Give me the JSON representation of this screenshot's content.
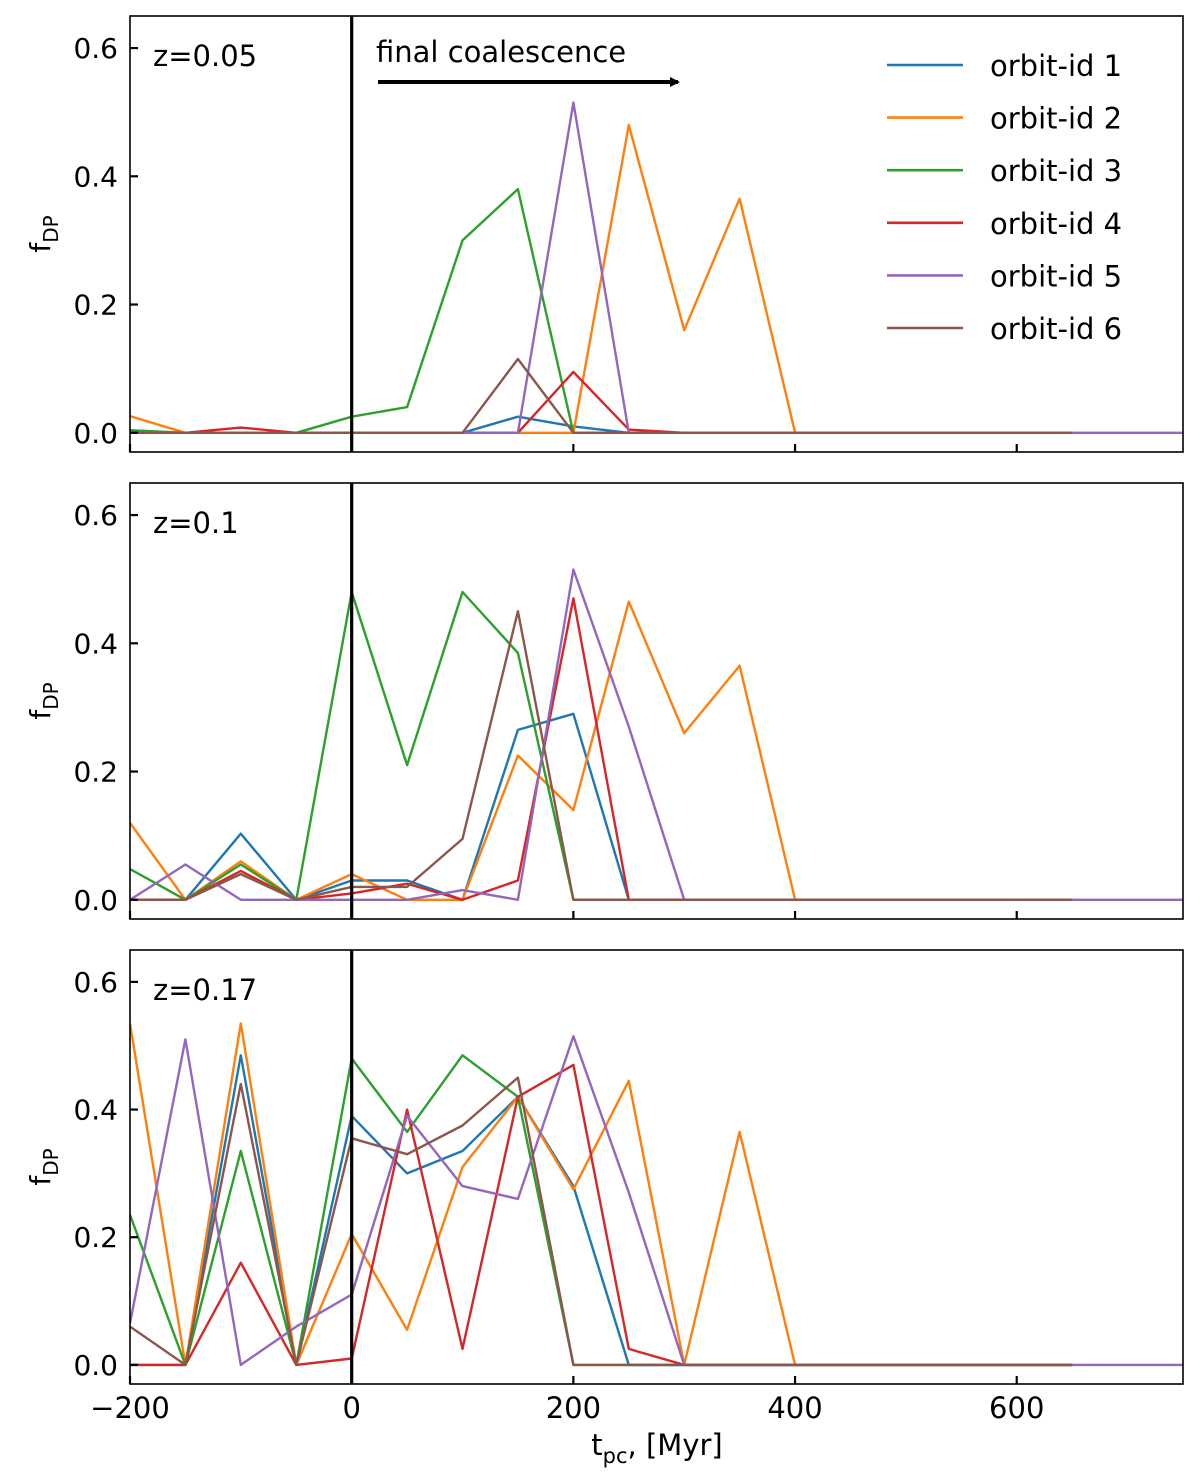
{
  "colors": {
    "orbit-1": "#1f77b4",
    "orbit-2": "#ff7f0e",
    "orbit-3": "#2ca02c",
    "orbit-4": "#d62728",
    "orbit-5": "#9467bd",
    "orbit-6": "#8c564b"
  },
  "legend": [
    "orbit-id 1",
    "orbit-id 2",
    "orbit-id 3",
    "orbit-id 4",
    "orbit-id 5",
    "orbit-id 6"
  ],
  "annotation": "final coalescence",
  "ylabel_main": "f",
  "ylabel_sub": "DP",
  "xlabel_main": "t",
  "xlabel_sub": "pc",
  "xlabel_rest": ", [Myr]",
  "chart_data": [
    {
      "type": "line",
      "title": "z=0.05",
      "xlim": [
        -200,
        750
      ],
      "ylim": [
        -0.03,
        0.65
      ],
      "xticks": [
        -200,
        0,
        200,
        400,
        600
      ],
      "xtick_labels": [
        "−200",
        "0",
        "200",
        "400",
        "600"
      ],
      "yticks": [
        0.0,
        0.2,
        0.4,
        0.6
      ],
      "ytick_labels": [
        "0.0",
        "0.2",
        "0.4",
        "0.6"
      ],
      "vline_x": 0,
      "x": [
        -200,
        -150,
        -100,
        -50,
        0,
        50,
        100,
        150,
        200,
        250,
        300,
        350,
        400,
        450,
        500,
        550,
        600,
        650,
        700,
        750
      ],
      "series": [
        {
          "name": "orbit-id 1",
          "values": [
            0.0,
            0.0,
            0.0,
            0.0,
            0.0,
            0.0,
            0.0,
            0.025,
            0.01,
            0.0,
            0.0,
            0.0,
            0.0,
            0.0,
            0.0,
            0.0,
            0.0,
            0.0,
            null,
            null
          ]
        },
        {
          "name": "orbit-id 2",
          "values": [
            0.026,
            0.0,
            0.0,
            0.0,
            0.0,
            0.0,
            0.0,
            0.0,
            0.0,
            0.48,
            0.16,
            0.365,
            0.0,
            0.0,
            0.0,
            0.0,
            0.0,
            0.0,
            null,
            null
          ]
        },
        {
          "name": "orbit-id 3",
          "values": [
            0.004,
            0.0,
            0.0,
            0.0,
            0.025,
            0.04,
            0.3,
            0.38,
            0.0,
            0.0,
            0.0,
            0.0,
            0.0,
            0.0,
            0.0,
            0.0,
            0.0,
            0.0,
            null,
            null
          ]
        },
        {
          "name": "orbit-id 4",
          "values": [
            0.0,
            0.0,
            0.008,
            0.0,
            0.0,
            0.0,
            0.0,
            0.0,
            0.095,
            0.005,
            0.0,
            0.0,
            0.0,
            0.0,
            0.0,
            0.0,
            0.0,
            0.0,
            null,
            null
          ]
        },
        {
          "name": "orbit-id 5",
          "values": [
            0.0,
            0.0,
            0.0,
            0.0,
            0.0,
            0.0,
            0.0,
            0.0,
            0.515,
            0.0,
            0.0,
            0.0,
            0.0,
            0.0,
            0.0,
            0.0,
            0.0,
            0.0,
            0.0,
            0.0
          ]
        },
        {
          "name": "orbit-id 6",
          "values": [
            0.0,
            0.0,
            0.0,
            0.0,
            0.0,
            0.0,
            0.0,
            0.115,
            0.0,
            0.0,
            0.0,
            0.0,
            0.0,
            0.0,
            0.0,
            0.0,
            0.0,
            0.0,
            null,
            null
          ]
        }
      ]
    },
    {
      "type": "line",
      "title": "z=0.1",
      "xlim": [
        -200,
        750
      ],
      "ylim": [
        -0.03,
        0.65
      ],
      "xticks": [
        -200,
        0,
        200,
        400,
        600
      ],
      "xtick_labels": [
        "−200",
        "0",
        "200",
        "400",
        "600"
      ],
      "yticks": [
        0.0,
        0.2,
        0.4,
        0.6
      ],
      "ytick_labels": [
        "0.0",
        "0.2",
        "0.4",
        "0.6"
      ],
      "vline_x": 0,
      "x": [
        -200,
        -150,
        -100,
        -50,
        0,
        50,
        100,
        150,
        200,
        250,
        300,
        350,
        400,
        450,
        500,
        550,
        600,
        650,
        700,
        750
      ],
      "series": [
        {
          "name": "orbit-id 1",
          "values": [
            0.0,
            0.0,
            0.103,
            0.0,
            0.03,
            0.03,
            0.0,
            0.265,
            0.29,
            0.0,
            0.0,
            0.0,
            0.0,
            0.0,
            0.0,
            0.0,
            0.0,
            0.0,
            null,
            null
          ]
        },
        {
          "name": "orbit-id 2",
          "values": [
            0.12,
            0.0,
            0.06,
            0.0,
            0.04,
            0.0,
            0.0,
            0.225,
            0.14,
            0.465,
            0.26,
            0.365,
            0.0,
            0.0,
            0.0,
            0.0,
            0.0,
            0.0,
            null,
            null
          ]
        },
        {
          "name": "orbit-id 3",
          "values": [
            0.048,
            0.0,
            0.055,
            0.0,
            0.48,
            0.21,
            0.48,
            0.385,
            0.0,
            0.0,
            0.0,
            0.0,
            0.0,
            0.0,
            0.0,
            0.0,
            0.0,
            0.0,
            null,
            null
          ]
        },
        {
          "name": "orbit-id 4",
          "values": [
            0.0,
            0.0,
            0.045,
            0.0,
            0.01,
            0.025,
            0.0,
            0.03,
            0.47,
            0.0,
            0.0,
            0.0,
            0.0,
            0.0,
            0.0,
            0.0,
            0.0,
            0.0,
            null,
            null
          ]
        },
        {
          "name": "orbit-id 5",
          "values": [
            0.0,
            0.055,
            0.0,
            0.0,
            0.0,
            0.0,
            0.015,
            0.0,
            0.515,
            0.27,
            0.0,
            0.0,
            0.0,
            0.0,
            0.0,
            0.0,
            0.0,
            0.0,
            0.0,
            0.0
          ]
        },
        {
          "name": "orbit-id 6",
          "values": [
            0.0,
            0.0,
            0.04,
            0.0,
            0.02,
            0.02,
            0.095,
            0.45,
            0.0,
            0.0,
            0.0,
            0.0,
            0.0,
            0.0,
            0.0,
            0.0,
            0.0,
            0.0,
            null,
            null
          ]
        }
      ]
    },
    {
      "type": "line",
      "title": "z=0.17",
      "xlim": [
        -200,
        750
      ],
      "ylim": [
        -0.03,
        0.65
      ],
      "xticks": [
        -200,
        0,
        200,
        400,
        600
      ],
      "xtick_labels": [
        "−200",
        "0",
        "200",
        "400",
        "600"
      ],
      "yticks": [
        0.0,
        0.2,
        0.4,
        0.6
      ],
      "ytick_labels": [
        "0.0",
        "0.2",
        "0.4",
        "0.6"
      ],
      "vline_x": 0,
      "x": [
        -200,
        -150,
        -100,
        -50,
        0,
        50,
        100,
        150,
        200,
        250,
        300,
        350,
        400,
        450,
        500,
        550,
        600,
        650,
        700,
        750
      ],
      "series": [
        {
          "name": "orbit-id 1",
          "values": [
            0.0,
            0.0,
            0.485,
            0.0,
            0.39,
            0.3,
            0.335,
            0.42,
            0.28,
            0.0,
            0.0,
            0.0,
            0.0,
            0.0,
            0.0,
            0.0,
            0.0,
            0.0,
            null,
            null
          ]
        },
        {
          "name": "orbit-id 2",
          "values": [
            0.535,
            0.0,
            0.535,
            0.0,
            0.205,
            0.055,
            0.31,
            0.42,
            0.275,
            0.445,
            0.0,
            0.365,
            0.0,
            0.0,
            0.0,
            0.0,
            0.0,
            0.0,
            null,
            null
          ]
        },
        {
          "name": "orbit-id 3",
          "values": [
            0.235,
            0.0,
            0.335,
            0.0,
            0.48,
            0.365,
            0.485,
            0.42,
            0.0,
            0.0,
            0.0,
            0.0,
            0.0,
            0.0,
            0.0,
            0.0,
            0.0,
            0.0,
            null,
            null
          ]
        },
        {
          "name": "orbit-id 4",
          "values": [
            0.0,
            0.0,
            0.16,
            0.0,
            0.01,
            0.4,
            0.025,
            0.42,
            0.47,
            0.025,
            0.0,
            0.0,
            0.0,
            0.0,
            0.0,
            0.0,
            0.0,
            0.0,
            null,
            null
          ]
        },
        {
          "name": "orbit-id 5",
          "values": [
            0.065,
            0.51,
            0.0,
            0.06,
            0.11,
            0.39,
            0.28,
            0.26,
            0.515,
            0.27,
            0.0,
            0.0,
            0.0,
            0.0,
            0.0,
            0.0,
            0.0,
            0.0,
            0.0,
            0.0
          ]
        },
        {
          "name": "orbit-id 6",
          "values": [
            0.06,
            0.0,
            0.44,
            0.0,
            0.355,
            0.33,
            0.375,
            0.45,
            0.0,
            0.0,
            0.0,
            0.0,
            0.0,
            0.0,
            0.0,
            0.0,
            0.0,
            0.0,
            null,
            null
          ]
        }
      ]
    }
  ]
}
